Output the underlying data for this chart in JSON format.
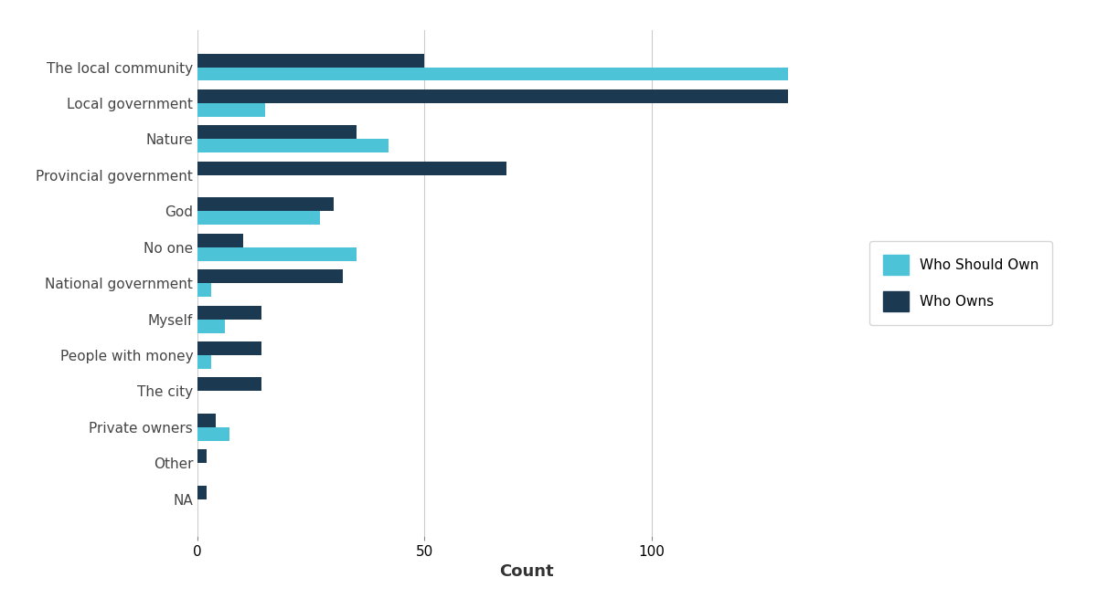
{
  "categories": [
    "The local community",
    "Local government",
    "Nature",
    "Provincial government",
    "God",
    "No one",
    "National government",
    "Myself",
    "People with money",
    "The city",
    "Private owners",
    "Other",
    "NA"
  ],
  "who_should_own": [
    130,
    15,
    42,
    0,
    27,
    35,
    3,
    6,
    3,
    0,
    7,
    0,
    0
  ],
  "who_owns": [
    50,
    130,
    35,
    68,
    30,
    10,
    32,
    14,
    14,
    14,
    4,
    2,
    2
  ],
  "color_should_own": "#4dc3d8",
  "color_who_owns": "#1b3a52",
  "xlabel": "Count",
  "legend_should_own": "Who Should Own",
  "legend_who_owns": "Who Owns",
  "background_color": "#ffffff",
  "bar_height": 0.38,
  "xlim": [
    0,
    145
  ],
  "xticks": [
    0,
    50,
    100
  ]
}
